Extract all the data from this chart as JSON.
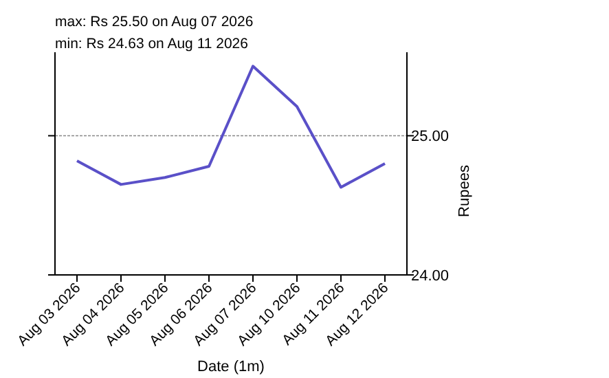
{
  "chart_data": {
    "type": "line",
    "xlabel": "Date (1m)",
    "ylabel": "Rupees",
    "annotations": [
      "max: Rs 25.50 on Aug 07 2026",
      "min: Rs 24.63 on Aug 11 2026"
    ],
    "categories": [
      "Aug 03 2026",
      "Aug 04 2026",
      "Aug 05 2026",
      "Aug 06 2026",
      "Aug 07 2026",
      "Aug 10 2026",
      "Aug 11 2026",
      "Aug 12 2026"
    ],
    "series": [
      {
        "color": "#5a50c8",
        "values": [
          24.82,
          24.65,
          24.7,
          24.78,
          25.5,
          25.21,
          24.63,
          24.8
        ]
      }
    ],
    "ylim": [
      24,
      25.6
    ],
    "yticks": [
      {
        "value": 24,
        "label": "24.00"
      },
      {
        "value": 25,
        "label": "25.00"
      }
    ],
    "grid": "y",
    "marker": "none",
    "line_style": "solid"
  }
}
